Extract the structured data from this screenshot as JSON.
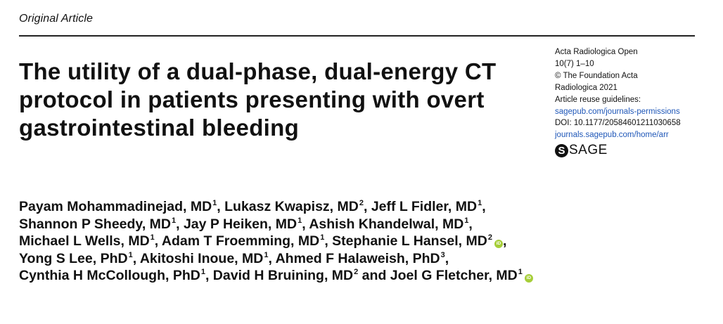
{
  "section_label": "Original Article",
  "title": "The utility of a dual-phase, dual-energy CT protocol in patients presenting with overt gastrointestinal bleeding",
  "journal": {
    "name": "Acta Radiologica Open",
    "issue": "10(7) 1–10",
    "copyright_line1": "© The Foundation Acta",
    "copyright_line2": "Radiologica 2021",
    "reuse_label": "Article reuse guidelines:",
    "reuse_link": "sagepub.com/journals-permissions",
    "doi": "DOI: 10.1177/20584601211030658",
    "journal_link": "journals.sagepub.com/home/arr",
    "publisher_logo_text": "SAGE",
    "publisher_logo_glyph": "S"
  },
  "orcid_glyph": "iD",
  "authors": {
    "line1": [
      {
        "name": "Payam Mohammadinejad, MD",
        "sup": "1",
        "sep": ", "
      },
      {
        "name": "Lukasz Kwapisz, MD",
        "sup": "2",
        "sep": ", "
      },
      {
        "name": "Jeff L Fidler, MD",
        "sup": "1",
        "sep": ","
      }
    ],
    "line2": [
      {
        "name": "Shannon P Sheedy, MD",
        "sup": "1",
        "sep": ", "
      },
      {
        "name": "Jay P Heiken, MD",
        "sup": "1",
        "sep": ", "
      },
      {
        "name": "Ashish Khandelwal, MD",
        "sup": "1",
        "sep": ","
      }
    ],
    "line3": [
      {
        "name": "Michael L Wells, MD",
        "sup": "1",
        "sep": ", "
      },
      {
        "name": "Adam T Froemming, MD",
        "sup": "1",
        "sep": ", "
      },
      {
        "name": "Stephanie L Hansel, MD",
        "sup": "2",
        "sep": ","
      }
    ],
    "line4": [
      {
        "name": "Yong S Lee, PhD",
        "sup": "1",
        "sep": ", "
      },
      {
        "name": "Akitoshi Inoue, MD",
        "sup": "1",
        "sep": ", "
      },
      {
        "name": "Ahmed F Halaweish, PhD",
        "sup": "3",
        "sep": ","
      }
    ],
    "line5": [
      {
        "name": "Cynthia H McCollough, PhD",
        "sup": "1",
        "sep": ", "
      },
      {
        "name": "David H Bruining, MD",
        "sup": "2",
        "sep": " and "
      },
      {
        "name": "Joel G Fletcher, MD",
        "sup": "1",
        "sep": ""
      }
    ]
  },
  "colors": {
    "link": "#1f57b8",
    "orcid": "#a6ce39",
    "text": "#111111"
  }
}
